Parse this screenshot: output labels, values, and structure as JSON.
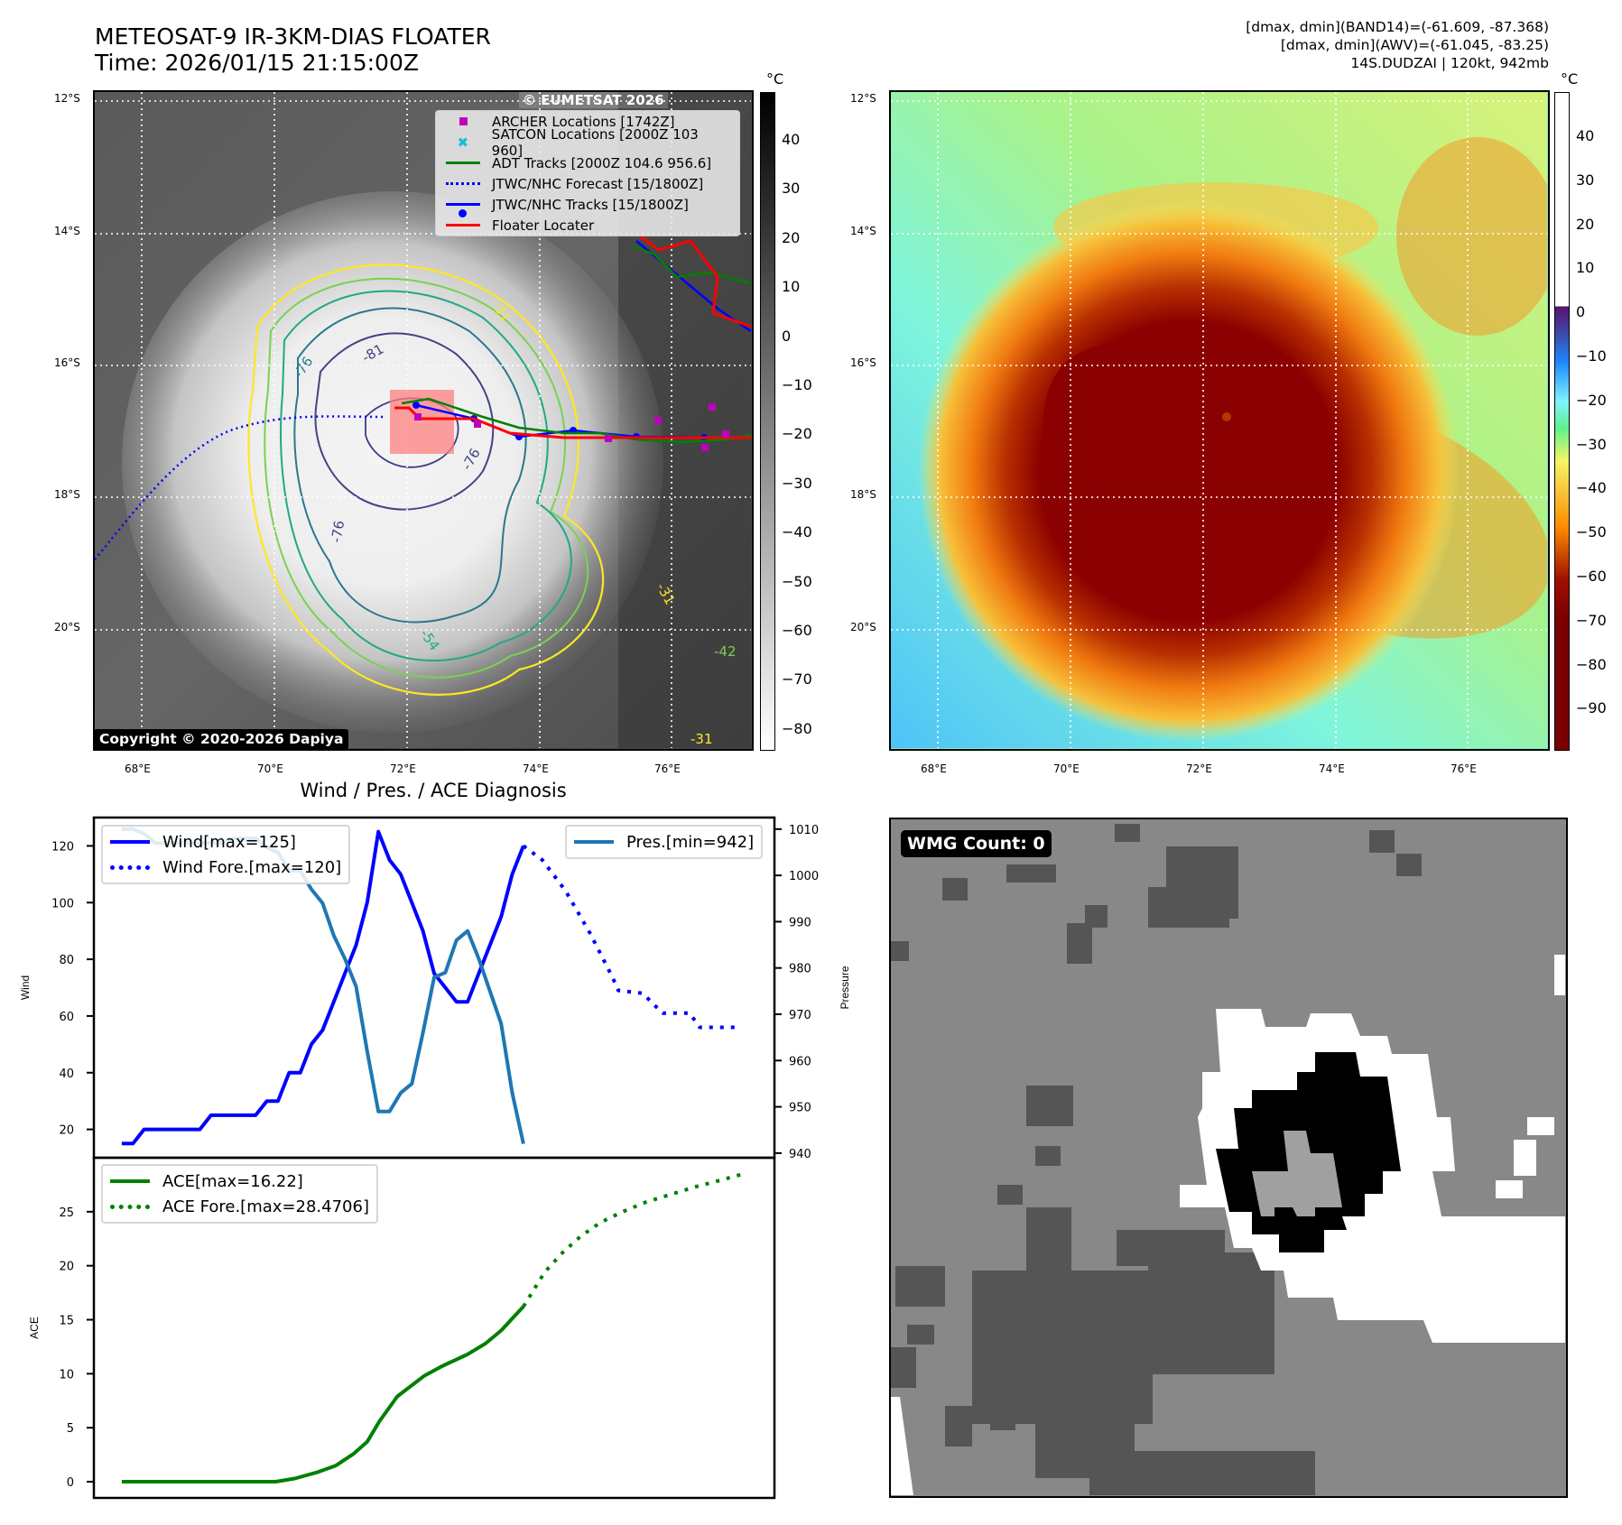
{
  "header": {
    "title_line1": "METEOSAT-9 IR-3KM-DIAS FLOATER",
    "title_line2": "Time: 2026/01/15 21:15:00Z",
    "stats_line1": "[dmax, dmin](BAND14)=(-61.609, -87.368)",
    "stats_line2": "[dmax, dmin](AWV)=(-61.045, -83.25)",
    "stats_line3": "14S.DUDZAI | 120kt, 942mb"
  },
  "map_left": {
    "lat_ticks": [
      "12°S",
      "14°S",
      "16°S",
      "18°S",
      "20°S"
    ],
    "lon_ticks": [
      "68°E",
      "70°E",
      "72°E",
      "74°E",
      "76°E"
    ],
    "watermark": "© EUMETSAT 2026",
    "copyright": "Copyright © 2020-2026 Dapiya",
    "contour_labels": [
      "-76",
      "-81",
      "-76",
      "-76",
      "-31",
      "-54",
      "-31",
      "-42",
      "-31"
    ],
    "legend": [
      {
        "label": "ARCHER Locations [1742Z]",
        "symbol": "square",
        "color": "#bf00bf"
      },
      {
        "label": "SATCON Locations [2000Z 103 960]",
        "symbol": "x",
        "color": "#17becf"
      },
      {
        "label": "ADT Tracks [2000Z 104.6 956.6]",
        "symbol": "line",
        "color": "#008000"
      },
      {
        "label": "JTWC/NHC Forecast [15/1800Z]",
        "symbol": "dotted",
        "color": "#0000ff"
      },
      {
        "label": "JTWC/NHC Tracks [15/1800Z]",
        "symbol": "line-dot",
        "color": "#0000ff"
      },
      {
        "label": "Floater Locater",
        "symbol": "line",
        "color": "#ff0000"
      }
    ],
    "colorbar": {
      "unit": "°C",
      "ticks": [
        "40",
        "30",
        "20",
        "10",
        "0",
        "−10",
        "−20",
        "−30",
        "−40",
        "−50",
        "−60",
        "−70",
        "−80"
      ]
    }
  },
  "map_right": {
    "lat_ticks": [
      "12°S",
      "14°S",
      "16°S",
      "18°S",
      "20°S"
    ],
    "lon_ticks": [
      "68°E",
      "70°E",
      "72°E",
      "74°E",
      "76°E"
    ],
    "colorbar": {
      "unit": "°C",
      "ticks": [
        "40",
        "30",
        "20",
        "10",
        "0",
        "−10",
        "−20",
        "−30",
        "−40",
        "−50",
        "−60",
        "−70",
        "−80",
        "−90"
      ]
    }
  },
  "wmg": {
    "badge": "WMG Count: 0"
  },
  "chart_data": [
    {
      "type": "line",
      "title": "Wind / Pres. / ACE Diagnosis",
      "ylabel": "Wind",
      "ylabel_right": "Pressure",
      "ylim": [
        10,
        130
      ],
      "ylim_right": [
        939,
        1012.5
      ],
      "xlim": [
        -2.5,
        58.5
      ],
      "yticks": [
        20,
        40,
        60,
        80,
        100,
        120
      ],
      "yticks_right": [
        940,
        950,
        960,
        970,
        980,
        990,
        1000,
        1010
      ],
      "series": [
        {
          "name": "Wind[max=125]",
          "axis": "left",
          "style": "solid",
          "color": "#0000ff",
          "x": [
            0,
            1,
            2,
            3,
            4,
            5,
            6,
            7,
            8,
            9,
            10,
            11,
            12,
            13,
            14,
            15,
            16,
            17,
            18,
            19,
            20,
            21,
            22,
            23,
            24,
            25,
            26,
            27,
            28,
            29,
            30,
            31,
            32,
            33,
            34,
            35,
            36
          ],
          "y": [
            15,
            15,
            20,
            20,
            20,
            20,
            20,
            20,
            25,
            25,
            25,
            25,
            25,
            30,
            30,
            40,
            40,
            50,
            55,
            65,
            75,
            85,
            100,
            125,
            115,
            110,
            100,
            90,
            75,
            70,
            65,
            65,
            75,
            85,
            95,
            110,
            120
          ]
        },
        {
          "name": "Wind Fore.[max=120]",
          "axis": "left",
          "style": "dotted",
          "color": "#0000ff",
          "x": [
            36,
            37.7,
            39.8,
            42,
            44,
            44.5,
            46.7,
            47.7,
            48.5,
            50.9,
            51.8,
            55.2
          ],
          "y": [
            120,
            115,
            104,
            89,
            73.5,
            69,
            68,
            64,
            61,
            61,
            56,
            56
          ]
        },
        {
          "name": "Pres.[min=942]",
          "axis": "right",
          "style": "solid",
          "color": "#1f77b4",
          "x": [
            0,
            1,
            2,
            3,
            4,
            5,
            6,
            7,
            8,
            9,
            10,
            11,
            12,
            13,
            14,
            15,
            16,
            17,
            18,
            19,
            20,
            21,
            22,
            23,
            24,
            25,
            26,
            27,
            28,
            29,
            30,
            31,
            32,
            33,
            34,
            35,
            36
          ],
          "y": [
            1010,
            1010,
            1009,
            1007,
            1007,
            1007,
            1007,
            1007,
            1007,
            1007,
            1008,
            1008,
            1008,
            1006,
            1005,
            1001,
            1001,
            997,
            994,
            987,
            982,
            976,
            962,
            949,
            949,
            953,
            955,
            966,
            978,
            979,
            986,
            988,
            982,
            975,
            968,
            953,
            942
          ]
        }
      ],
      "legend_left": [
        "Wind[max=125]",
        "Wind Fore.[max=120]"
      ],
      "legend_right": [
        "Pres.[min=942]"
      ]
    },
    {
      "type": "line",
      "ylabel": "ACE",
      "ylim": [
        -1.5,
        30
      ],
      "xlim": [
        -2.5,
        58.5
      ],
      "yticks": [
        0,
        5,
        10,
        15,
        20,
        25
      ],
      "series": [
        {
          "name": "ACE[max=16.22]",
          "style": "solid",
          "color": "#008000",
          "x": [
            0,
            4,
            8,
            12,
            13.8,
            15.5,
            17.6,
            19.2,
            20.8,
            22,
            23.1,
            24.7,
            27.1,
            28.7,
            31,
            32.6,
            34,
            36
          ],
          "y": [
            0,
            0,
            0,
            0,
            0,
            0.3,
            0.9,
            1.5,
            2.6,
            3.7,
            5.6,
            7.9,
            9.8,
            10.7,
            11.8,
            12.8,
            14,
            16.22
          ]
        },
        {
          "name": "ACE Fore.[max=28.4706]",
          "style": "dotted",
          "color": "#008000",
          "x": [
            36,
            37.9,
            39.5,
            41.1,
            42.9,
            44.9,
            47,
            49.2,
            51.4,
            53.6,
            55.6
          ],
          "y": [
            16.22,
            19.4,
            21.2,
            22.7,
            24,
            25,
            25.9,
            26.6,
            27.3,
            27.9,
            28.4706
          ]
        }
      ],
      "legend": [
        "ACE[max=16.22]",
        "ACE Fore.[max=28.4706]"
      ]
    }
  ]
}
